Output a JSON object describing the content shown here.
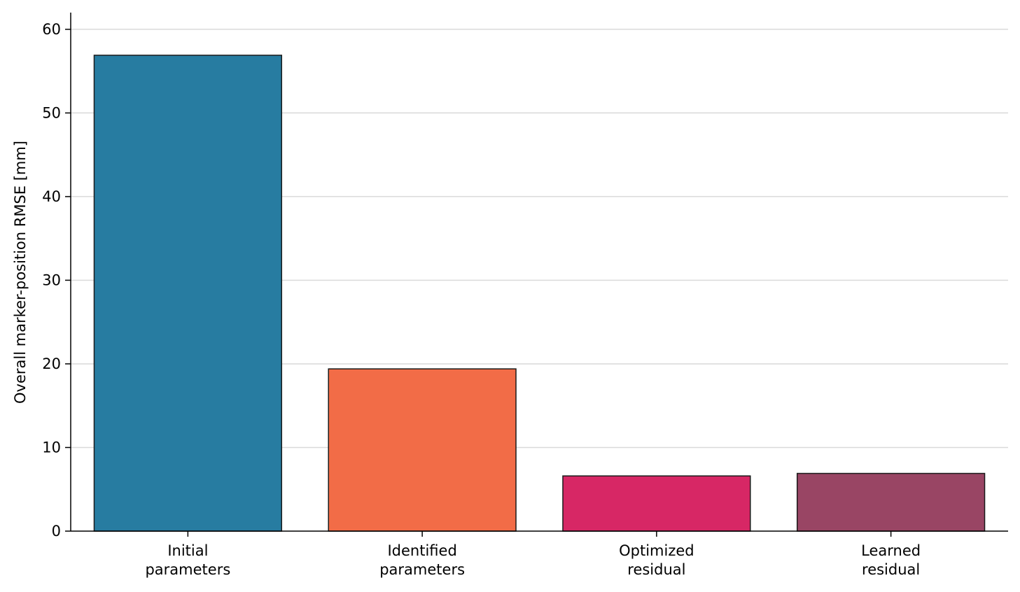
{
  "chart_data": {
    "type": "bar",
    "categories": [
      [
        "Initial",
        "parameters"
      ],
      [
        "Identified",
        "parameters"
      ],
      [
        "Optimized",
        "residual"
      ],
      [
        "Learned",
        "residual"
      ]
    ],
    "values": [
      56.9,
      19.4,
      6.6,
      6.9
    ],
    "colors": [
      "#277ca1",
      "#f26c47",
      "#d72765",
      "#994564"
    ],
    "title": "",
    "xlabel": "",
    "ylabel": "Overall marker-position RMSE [mm]",
    "ylim": [
      0,
      62
    ],
    "yticks": [
      0,
      10,
      20,
      30,
      40,
      50,
      60
    ],
    "grid": "horizontal",
    "legend": "none"
  }
}
